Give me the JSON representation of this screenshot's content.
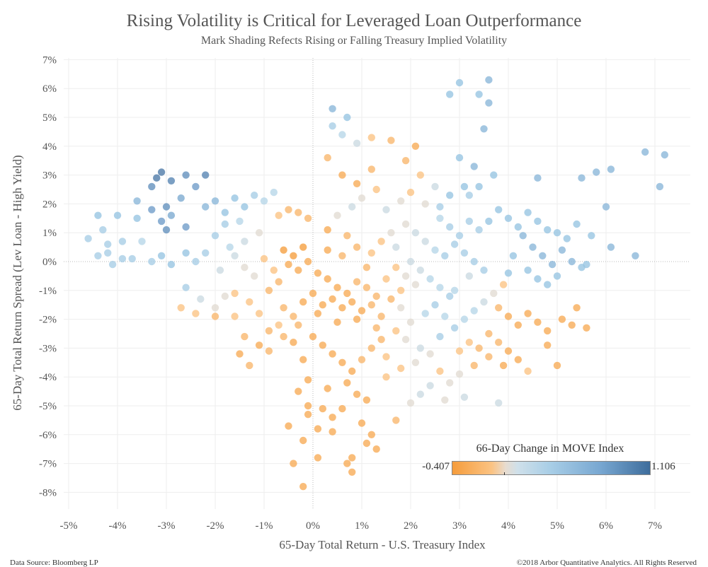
{
  "header": {
    "title": "Rising Volatility is Critical for Leveraged Loan Outperformance",
    "subtitle": "Mark Shading Refects Rising or Falling Treasury Implied Volatility"
  },
  "footer": {
    "source": "Data Source: Bloomberg LP",
    "copyright": "©2018 Arbor Quantitative Analytics. All Rights Reserved"
  },
  "legend": {
    "title": "66-Day Change in MOVE Index",
    "min_label": "-0.407",
    "max_label": "1.106"
  },
  "colors": {
    "low": "#f59c3c",
    "mid": "#dcdcd8",
    "high": "#3e6d9c",
    "grid": "#eeeeee",
    "zero_line": "#bbbbbb"
  },
  "chart_data": {
    "type": "scatter",
    "title": "Rising Volatility is Critical for Leveraged Loan Outperformance",
    "subtitle": "Mark Shading Refects Rising or Falling Treasury Implied Volatility",
    "xlabel": "65-Day Total Return - U.S. Treasury Index",
    "ylabel": "65-Day Total Return Spread (Lev Loan - High Yield)",
    "xlim": [
      -5.3,
      7.6
    ],
    "ylim": [
      -8.3,
      7.3
    ],
    "x_ticks": [
      "-5%",
      "-4%",
      "-3%",
      "-2%",
      "-1%",
      "0%",
      "1%",
      "2%",
      "3%",
      "4%",
      "5%",
      "6%",
      "7%"
    ],
    "y_ticks": [
      "7%",
      "6%",
      "5%",
      "4%",
      "3%",
      "2%",
      "1%",
      "0%",
      "-1%",
      "-2%",
      "-3%",
      "-4%",
      "-5%",
      "-6%",
      "-7%",
      "-8%"
    ],
    "color_scale": {
      "variable": "66-Day Change in MOVE Index",
      "min": -0.407,
      "max": 1.106
    },
    "grid": true,
    "legend_position": "bottom-right",
    "points": [
      [
        -3.1,
        3.1,
        1.0
      ],
      [
        -3.2,
        2.9,
        1.0
      ],
      [
        -2.9,
        2.8,
        0.9
      ],
      [
        -2.6,
        3.0,
        0.8
      ],
      [
        -2.2,
        3.0,
        0.9
      ],
      [
        -2.4,
        2.6,
        0.7
      ],
      [
        -3.3,
        2.6,
        0.8
      ],
      [
        -2.7,
        2.2,
        0.6
      ],
      [
        -3.0,
        1.9,
        0.8
      ],
      [
        -3.3,
        1.8,
        0.7
      ],
      [
        -3.6,
        2.1,
        0.5
      ],
      [
        -2.9,
        1.6,
        0.6
      ],
      [
        -3.1,
        1.4,
        0.7
      ],
      [
        -3.0,
        1.1,
        0.8
      ],
      [
        -2.6,
        1.2,
        0.7
      ],
      [
        -4.4,
        1.6,
        0.4
      ],
      [
        -4.0,
        1.6,
        0.4
      ],
      [
        -3.6,
        1.5,
        0.4
      ],
      [
        -4.3,
        1.1,
        0.3
      ],
      [
        -4.6,
        0.8,
        0.3
      ],
      [
        -4.2,
        0.6,
        0.3
      ],
      [
        -3.9,
        0.7,
        0.3
      ],
      [
        -3.5,
        0.7,
        0.2
      ],
      [
        -4.2,
        0.3,
        0.3
      ],
      [
        -3.9,
        0.1,
        0.3
      ],
      [
        -4.4,
        0.2,
        0.3
      ],
      [
        -4.1,
        -0.1,
        0.3
      ],
      [
        -3.7,
        0.1,
        0.3
      ],
      [
        -3.3,
        0.0,
        0.3
      ],
      [
        -3.1,
        0.2,
        0.4
      ],
      [
        -2.9,
        -0.1,
        0.4
      ],
      [
        -2.6,
        0.3,
        0.4
      ],
      [
        -2.4,
        0.0,
        0.3
      ],
      [
        -2.2,
        0.3,
        0.3
      ],
      [
        -2.2,
        1.9,
        0.5
      ],
      [
        -2.0,
        2.1,
        0.5
      ],
      [
        -1.8,
        1.7,
        0.4
      ],
      [
        -1.6,
        2.2,
        0.4
      ],
      [
        -1.4,
        1.9,
        0.4
      ],
      [
        -1.2,
        2.3,
        0.3
      ],
      [
        -1.0,
        2.1,
        0.2
      ],
      [
        -0.8,
        2.4,
        0.2
      ],
      [
        -1.5,
        1.4,
        0.2
      ],
      [
        -1.8,
        1.3,
        0.3
      ],
      [
        -2.0,
        0.9,
        0.3
      ],
      [
        -1.7,
        0.5,
        0.2
      ],
      [
        -1.4,
        0.7,
        0.1
      ],
      [
        -1.1,
        1.0,
        0.0
      ],
      [
        -0.7,
        1.6,
        -0.1
      ],
      [
        -0.5,
        1.8,
        -0.2
      ],
      [
        -0.3,
        1.7,
        -0.2
      ],
      [
        -0.1,
        1.5,
        -0.2
      ],
      [
        -2.6,
        -0.9,
        0.3
      ],
      [
        -2.3,
        -1.3,
        0.1
      ],
      [
        -2.0,
        -1.6,
        0.0
      ],
      [
        -1.8,
        -1.2,
        0.0
      ],
      [
        -1.6,
        -1.9,
        -0.1
      ],
      [
        -1.3,
        -1.4,
        -0.1
      ],
      [
        -1.1,
        -1.8,
        -0.1
      ],
      [
        -1.4,
        -2.6,
        -0.2
      ],
      [
        -1.1,
        -2.9,
        -0.3
      ],
      [
        -0.9,
        -2.4,
        -0.2
      ],
      [
        -0.7,
        -2.2,
        -0.1
      ],
      [
        -1.5,
        -3.2,
        -0.3
      ],
      [
        -1.3,
        -3.6,
        -0.2
      ],
      [
        -0.9,
        -3.1,
        -0.2
      ],
      [
        -2.7,
        -1.6,
        -0.1
      ],
      [
        -2.4,
        -1.8,
        -0.1
      ],
      [
        -2.0,
        -1.9,
        -0.2
      ],
      [
        -1.6,
        -1.1,
        -0.1
      ],
      [
        -0.6,
        0.4,
        -0.4
      ],
      [
        -0.4,
        0.2,
        -0.4
      ],
      [
        -0.2,
        0.5,
        -0.4
      ],
      [
        -0.5,
        -0.1,
        -0.3
      ],
      [
        -0.3,
        -0.3,
        -0.3
      ],
      [
        -0.1,
        0.0,
        -0.3
      ],
      [
        0.1,
        -0.4,
        -0.3
      ],
      [
        0.3,
        -0.6,
        -0.3
      ],
      [
        0.5,
        -0.9,
        -0.3
      ],
      [
        0.7,
        -1.1,
        -0.3
      ],
      [
        0.9,
        -0.7,
        -0.2
      ],
      [
        1.1,
        -0.9,
        -0.2
      ],
      [
        1.3,
        -1.2,
        -0.2
      ],
      [
        0.4,
        -1.3,
        -0.3
      ],
      [
        0.2,
        -1.5,
        -0.3
      ],
      [
        0.6,
        -1.6,
        -0.3
      ],
      [
        0.8,
        -1.4,
        -0.3
      ],
      [
        1.0,
        -1.7,
        -0.3
      ],
      [
        1.2,
        -1.5,
        -0.2
      ],
      [
        1.4,
        -1.9,
        -0.2
      ],
      [
        0.0,
        -1.1,
        -0.3
      ],
      [
        -0.2,
        -1.4,
        -0.3
      ],
      [
        0.1,
        -1.8,
        -0.3
      ],
      [
        0.5,
        -2.1,
        -0.3
      ],
      [
        0.9,
        -2.0,
        -0.3
      ],
      [
        1.3,
        -2.3,
        -0.2
      ],
      [
        1.6,
        -1.3,
        -0.2
      ],
      [
        1.8,
        -1.0,
        -0.1
      ],
      [
        1.5,
        -0.6,
        -0.1
      ],
      [
        1.7,
        -0.2,
        -0.1
      ],
      [
        1.9,
        -0.5,
        0.0
      ],
      [
        2.1,
        -0.8,
        0.0
      ],
      [
        -0.7,
        -0.7,
        -0.2
      ],
      [
        -0.9,
        -1.0,
        -0.2
      ],
      [
        -0.4,
        -1.9,
        -0.2
      ],
      [
        -0.6,
        -1.6,
        -0.2
      ],
      [
        0.3,
        0.4,
        -0.3
      ],
      [
        0.6,
        0.2,
        -0.2
      ],
      [
        0.9,
        0.5,
        -0.2
      ],
      [
        1.2,
        0.3,
        -0.1
      ],
      [
        1.4,
        0.7,
        -0.1
      ],
      [
        1.6,
        1.0,
        0.0
      ],
      [
        1.9,
        1.3,
        0.0
      ],
      [
        2.1,
        1.0,
        0.1
      ],
      [
        2.3,
        0.7,
        0.1
      ],
      [
        2.5,
        0.4,
        0.2
      ],
      [
        2.0,
        0.0,
        0.1
      ],
      [
        2.2,
        -0.3,
        0.1
      ],
      [
        2.4,
        -0.6,
        0.2
      ],
      [
        2.6,
        -0.9,
        0.2
      ],
      [
        2.8,
        -1.2,
        0.3
      ],
      [
        2.5,
        -1.5,
        0.3
      ],
      [
        2.3,
        -1.8,
        0.2
      ],
      [
        2.0,
        -2.1,
        0.0
      ],
      [
        1.7,
        -2.4,
        -0.1
      ],
      [
        1.9,
        -2.7,
        0.0
      ],
      [
        2.2,
        -3.0,
        0.1
      ],
      [
        2.6,
        -2.6,
        0.3
      ],
      [
        2.9,
        -2.3,
        0.3
      ],
      [
        3.1,
        -2.0,
        0.2
      ],
      [
        3.3,
        -1.7,
        0.2
      ],
      [
        3.5,
        -1.4,
        0.1
      ],
      [
        3.7,
        -1.1,
        0.0
      ],
      [
        3.9,
        -0.8,
        -0.1
      ],
      [
        0.5,
        1.6,
        0.0
      ],
      [
        0.8,
        1.9,
        0.1
      ],
      [
        1.0,
        2.2,
        0.0
      ],
      [
        1.3,
        2.5,
        -0.1
      ],
      [
        1.5,
        1.8,
        0.1
      ],
      [
        1.8,
        2.1,
        0.0
      ],
      [
        2.0,
        2.4,
        -0.1
      ],
      [
        2.3,
        2.0,
        0.0
      ],
      [
        2.5,
        2.6,
        0.1
      ],
      [
        2.2,
        3.0,
        -0.1
      ],
      [
        1.9,
        3.5,
        -0.2
      ],
      [
        2.1,
        4.0,
        -0.3
      ],
      [
        1.6,
        4.2,
        -0.2
      ],
      [
        1.2,
        4.3,
        -0.1
      ],
      [
        0.9,
        4.1,
        0.1
      ],
      [
        0.6,
        4.4,
        0.2
      ],
      [
        0.4,
        4.7,
        0.3
      ],
      [
        0.7,
        5.0,
        0.4
      ],
      [
        0.4,
        5.3,
        0.5
      ],
      [
        0.3,
        3.6,
        -0.2
      ],
      [
        0.6,
        3.0,
        -0.3
      ],
      [
        0.9,
        2.7,
        -0.3
      ],
      [
        1.2,
        3.2,
        -0.2
      ],
      [
        2.6,
        1.5,
        0.2
      ],
      [
        2.8,
        1.2,
        0.3
      ],
      [
        3.0,
        0.9,
        0.3
      ],
      [
        3.2,
        1.4,
        0.3
      ],
      [
        3.4,
        1.1,
        0.3
      ],
      [
        2.9,
        0.6,
        0.3
      ],
      [
        2.7,
        0.2,
        0.3
      ],
      [
        3.1,
        0.3,
        0.3
      ],
      [
        3.3,
        0.0,
        0.3
      ],
      [
        3.5,
        -0.3,
        0.3
      ],
      [
        2.6,
        1.9,
        0.3
      ],
      [
        2.8,
        2.3,
        0.4
      ],
      [
        3.1,
        2.6,
        0.4
      ],
      [
        3.0,
        3.6,
        0.4
      ],
      [
        3.3,
        3.3,
        0.5
      ],
      [
        3.5,
        4.6,
        0.5
      ],
      [
        3.6,
        5.5,
        0.5
      ],
      [
        3.4,
        5.8,
        0.4
      ],
      [
        3.0,
        6.2,
        0.4
      ],
      [
        2.8,
        5.8,
        0.4
      ],
      [
        3.6,
        6.3,
        0.5
      ],
      [
        3.7,
        3.0,
        0.4
      ],
      [
        3.4,
        2.6,
        0.4
      ],
      [
        3.2,
        2.3,
        0.3
      ],
      [
        3.6,
        1.4,
        0.4
      ],
      [
        3.8,
        1.8,
        0.4
      ],
      [
        4.0,
        1.5,
        0.4
      ],
      [
        4.2,
        1.2,
        0.4
      ],
      [
        4.4,
        1.7,
        0.4
      ],
      [
        4.6,
        1.4,
        0.4
      ],
      [
        4.8,
        1.1,
        0.4
      ],
      [
        4.3,
        0.9,
        0.5
      ],
      [
        4.5,
        0.5,
        0.5
      ],
      [
        4.7,
        0.2,
        0.5
      ],
      [
        4.9,
        -0.1,
        0.5
      ],
      [
        5.1,
        0.4,
        0.5
      ],
      [
        5.3,
        0.0,
        0.5
      ],
      [
        5.5,
        -0.2,
        0.4
      ],
      [
        5.2,
        0.8,
        0.4
      ],
      [
        5.4,
        1.3,
        0.4
      ],
      [
        5.0,
        1.0,
        0.4
      ],
      [
        4.1,
        0.2,
        0.4
      ],
      [
        4.0,
        -0.4,
        0.4
      ],
      [
        4.4,
        -0.3,
        0.4
      ],
      [
        4.6,
        -0.6,
        0.4
      ],
      [
        4.8,
        -0.8,
        0.4
      ],
      [
        5.0,
        -0.5,
        0.4
      ],
      [
        5.6,
        -0.1,
        0.4
      ],
      [
        4.6,
        2.9,
        0.5
      ],
      [
        5.5,
        2.9,
        0.5
      ],
      [
        5.8,
        3.1,
        0.5
      ],
      [
        6.1,
        3.2,
        0.5
      ],
      [
        6.8,
        3.8,
        0.5
      ],
      [
        7.2,
        3.7,
        0.5
      ],
      [
        7.1,
        2.6,
        0.5
      ],
      [
        6.0,
        1.9,
        0.5
      ],
      [
        6.1,
        0.5,
        0.5
      ],
      [
        6.6,
        0.2,
        0.5
      ],
      [
        5.7,
        0.9,
        0.4
      ],
      [
        3.8,
        -1.6,
        -0.2
      ],
      [
        4.0,
        -1.9,
        -0.3
      ],
      [
        4.2,
        -2.2,
        -0.3
      ],
      [
        4.4,
        -1.8,
        -0.3
      ],
      [
        4.6,
        -2.1,
        -0.3
      ],
      [
        4.8,
        -2.4,
        -0.3
      ],
      [
        5.1,
        -2.0,
        -0.3
      ],
      [
        5.4,
        -1.6,
        -0.3
      ],
      [
        5.6,
        -2.3,
        -0.3
      ],
      [
        3.6,
        -2.5,
        -0.2
      ],
      [
        3.8,
        -2.8,
        -0.2
      ],
      [
        4.0,
        -3.1,
        -0.3
      ],
      [
        4.2,
        -3.4,
        -0.3
      ],
      [
        3.9,
        -3.6,
        -0.3
      ],
      [
        3.6,
        -3.3,
        -0.2
      ],
      [
        3.4,
        -3.0,
        -0.2
      ],
      [
        3.2,
        -2.8,
        -0.1
      ],
      [
        3.0,
        -3.1,
        -0.1
      ],
      [
        3.3,
        -3.6,
        -0.2
      ],
      [
        3.0,
        -3.9,
        0.0
      ],
      [
        2.8,
        -4.2,
        0.0
      ],
      [
        2.6,
        -3.8,
        -0.1
      ],
      [
        2.4,
        -4.3,
        0.1
      ],
      [
        2.2,
        -4.6,
        0.1
      ],
      [
        2.0,
        -4.9,
        0.0
      ],
      [
        1.7,
        -5.5,
        -0.2
      ],
      [
        1.5,
        -4.0,
        -0.1
      ],
      [
        2.7,
        -4.8,
        0.0
      ],
      [
        3.1,
        -4.7,
        0.1
      ],
      [
        3.8,
        -4.9,
        0.1
      ],
      [
        4.4,
        -3.8,
        -0.1
      ],
      [
        5.0,
        -3.6,
        -0.3
      ],
      [
        4.8,
        -2.9,
        -0.3
      ],
      [
        5.3,
        -2.2,
        -0.3
      ],
      [
        0.0,
        -2.6,
        -0.3
      ],
      [
        0.2,
        -2.9,
        -0.3
      ],
      [
        0.4,
        -3.2,
        -0.3
      ],
      [
        0.6,
        -3.5,
        -0.3
      ],
      [
        0.8,
        -3.8,
        -0.3
      ],
      [
        1.0,
        -3.4,
        -0.2
      ],
      [
        1.2,
        -3.0,
        -0.2
      ],
      [
        1.4,
        -2.7,
        -0.2
      ],
      [
        -0.4,
        -2.8,
        -0.3
      ],
      [
        -0.2,
        -3.4,
        -0.3
      ],
      [
        -0.1,
        -4.1,
        -0.3
      ],
      [
        0.3,
        -4.4,
        -0.3
      ],
      [
        0.7,
        -4.2,
        -0.3
      ],
      [
        0.9,
        -4.6,
        -0.3
      ],
      [
        1.1,
        -4.8,
        -0.3
      ],
      [
        -0.3,
        -4.5,
        -0.3
      ],
      [
        -0.1,
        -5.0,
        -0.3
      ],
      [
        0.2,
        -5.1,
        -0.3
      ],
      [
        0.4,
        -5.4,
        -0.3
      ],
      [
        -0.1,
        -5.3,
        -0.3
      ],
      [
        0.1,
        -5.8,
        -0.3
      ],
      [
        0.4,
        -5.9,
        -0.3
      ],
      [
        0.6,
        -5.1,
        -0.3
      ],
      [
        -0.5,
        -5.7,
        -0.3
      ],
      [
        -0.2,
        -6.2,
        -0.3
      ],
      [
        1.0,
        -5.6,
        -0.3
      ],
      [
        1.2,
        -6.0,
        -0.3
      ],
      [
        1.1,
        -6.3,
        -0.3
      ],
      [
        1.3,
        -6.5,
        -0.3
      ],
      [
        0.8,
        -6.8,
        -0.3
      ],
      [
        0.1,
        -6.8,
        -0.3
      ],
      [
        0.7,
        -7.0,
        -0.3
      ],
      [
        -0.4,
        -7.0,
        -0.3
      ],
      [
        0.8,
        -7.3,
        -0.3
      ],
      [
        -0.2,
        -7.8,
        -0.3
      ],
      [
        -0.8,
        -0.3,
        -0.1
      ],
      [
        -1.0,
        0.1,
        -0.1
      ],
      [
        -1.2,
        -0.5,
        0.0
      ],
      [
        -1.4,
        -0.2,
        0.0
      ],
      [
        -1.6,
        0.2,
        0.1
      ],
      [
        -1.9,
        -0.3,
        0.1
      ],
      [
        -0.6,
        -2.6,
        -0.2
      ],
      [
        -0.3,
        -2.2,
        -0.2
      ],
      [
        0.7,
        0.9,
        -0.2
      ],
      [
        0.3,
        1.1,
        -0.3
      ],
      [
        1.7,
        0.5,
        0.1
      ],
      [
        1.1,
        -0.2,
        -0.2
      ],
      [
        1.8,
        -1.6,
        0.0
      ],
      [
        2.7,
        -1.9,
        0.2
      ],
      [
        2.9,
        -1.0,
        0.2
      ],
      [
        3.2,
        -0.5,
        0.1
      ],
      [
        1.5,
        -3.3,
        -0.1
      ],
      [
        1.8,
        -3.7,
        -0.1
      ],
      [
        2.1,
        -3.5,
        0.0
      ],
      [
        2.4,
        -3.2,
        0.0
      ]
    ]
  }
}
